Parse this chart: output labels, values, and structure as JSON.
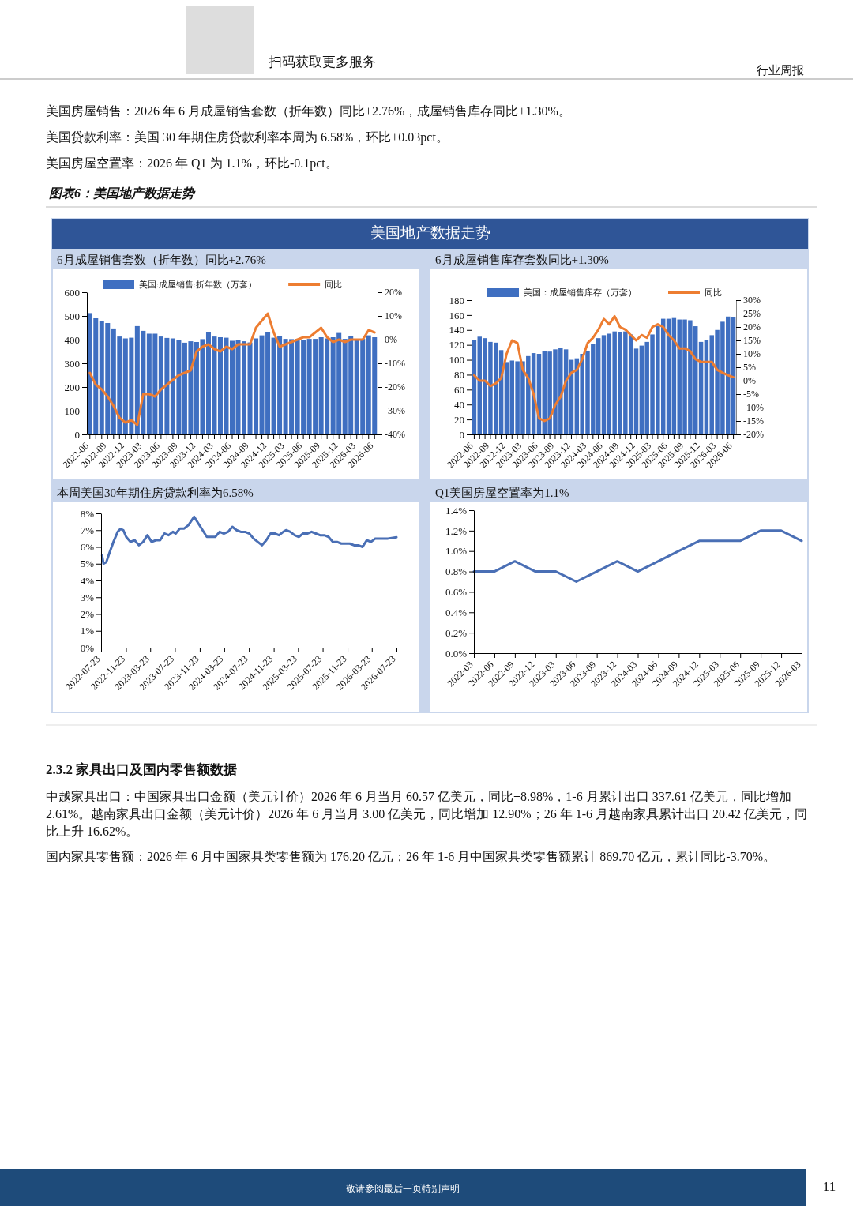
{
  "chart_data": [
    {
      "type": "bar",
      "title": "6月成屋销售套数（折年数）同比+2.76%",
      "annotations": [
        "行业周报",
        "扫码获取更多服务",
        "美国房屋销售：2026 年 6 月成屋销售套数（折年数）同比+2.76%，成屋销售库存同比+1.30%。",
        "美国贷款利率：美国 30 年期住房贷款利率本周为 6.58%，环比+0.03pct。",
        "美国房屋空置率：2026 年 Q1 为 1.1%，环比-0.1pct。",
        "图表6：美国地产数据走势",
        "美国地产数据走势",
        "2.3.2 家具出口及国内零售额数据",
        "中越家具出口：中国家具出口金额（美元计价）2026 年 6 月当月 60.57 亿美元，同比+8.98%，1-6 月累计出口 337.61 亿美元，同比增加 2.61%。越南家具出口金额（美元计价）2026 年 6 月当月 3.00 亿美元，同比增加 12.90%；26 年 1-6 月越南家具累计出口 20.42 亿美元，同比上升 16.62%。",
        "国内家具零售额：2026 年 6 月中国家具类零售额为 176.20 亿元；26 年 1-6 月中国家具类零售额累计 869.70 亿元，累计同比-3.70%。",
        "敬请参阅最后一页特别声明",
        "11"
      ],
      "categories": [
        "2022-06",
        null,
        null,
        "2022-09",
        null,
        null,
        "2022-12",
        null,
        null,
        "2023-03",
        null,
        null,
        "2023-06",
        null,
        null,
        "2023-09",
        null,
        null,
        "2023-12",
        null,
        null,
        "2024-03",
        null,
        null,
        "2024-06",
        null,
        null,
        "2024-09",
        null,
        null,
        "2024-12",
        null,
        null,
        "2025-03",
        null,
        null,
        "2025-06",
        null,
        null,
        "2025-09",
        null,
        null,
        "2025-12",
        null,
        null,
        "2026-03",
        null,
        null,
        "2026-06"
      ],
      "series": [
        {
          "name": "美国:成屋销售:折年数（万套）",
          "type": "bar",
          "color": "#3f6fc1",
          "values": [
            512,
            490,
            478,
            470,
            447,
            413,
            405,
            408,
            457,
            437,
            425,
            425,
            413,
            407,
            405,
            398,
            387,
            393,
            390,
            402,
            433,
            413,
            410,
            408,
            395,
            398,
            393,
            388,
            405,
            418,
            430,
            408,
            415,
            403,
            402,
            403,
            398,
            403,
            403,
            410,
            405,
            410,
            428,
            403,
            415,
            400,
            403,
            418,
            410
          ]
        },
        {
          "name": "同比",
          "type": "line",
          "axis": "y2",
          "color": "#ed7d31",
          "values": [
            -14,
            -19,
            -21,
            -24,
            -28,
            -33,
            -35,
            -34,
            -36,
            -23,
            -23,
            -24,
            -21,
            -19,
            -17,
            -15,
            -14,
            -13,
            -5,
            -3,
            -2,
            -4,
            -5,
            -3,
            -4,
            -2,
            -2,
            -2,
            5,
            8,
            11,
            3,
            -3,
            -2,
            -1,
            0,
            1,
            1,
            3,
            5,
            1,
            -1,
            0,
            -1,
            0,
            0,
            0,
            4,
            3
          ]
        }
      ],
      "ylim": [
        0,
        600
      ],
      "yticks": [
        0,
        100,
        200,
        300,
        400,
        500,
        600
      ],
      "y2lim": [
        -40,
        20
      ],
      "y2ticks": [
        {
          "value": -40,
          "label": "-40%"
        },
        {
          "value": -30,
          "label": "-30%"
        },
        {
          "value": -20,
          "label": "-20%"
        },
        {
          "value": -10,
          "label": "-10%"
        },
        {
          "value": 0,
          "label": "0%"
        },
        {
          "value": 10,
          "label": "10%"
        },
        {
          "value": 20,
          "label": "20%"
        }
      ],
      "legend": "top"
    },
    {
      "type": "bar",
      "title": "6月成屋销售库存套数同比+1.30%",
      "categories": [
        "2022-06",
        null,
        null,
        "2022-09",
        null,
        null,
        "2022-12",
        null,
        null,
        "2023-03",
        null,
        null,
        "2023-06",
        null,
        null,
        "2023-09",
        null,
        null,
        "2023-12",
        null,
        null,
        "2024-03",
        null,
        null,
        "2024-06",
        null,
        null,
        "2024-09",
        null,
        null,
        "2024-12",
        null,
        null,
        "2025-03",
        null,
        null,
        "2025-06",
        null,
        null,
        "2025-09",
        null,
        null,
        "2025-12",
        null,
        null,
        "2026-03",
        null,
        null,
        "2026-06"
      ],
      "series": [
        {
          "name": "美国：成屋销售库存（万套）",
          "type": "bar",
          "color": "#3f6fc1",
          "values": [
            126,
            131,
            129,
            124,
            123,
            113,
            97,
            99,
            98,
            98,
            105,
            109,
            108,
            112,
            111,
            114,
            116,
            114,
            100,
            102,
            108,
            112,
            121,
            129,
            133,
            135,
            138,
            137,
            138,
            134,
            115,
            119,
            124,
            134,
            145,
            155,
            155,
            156,
            154,
            154,
            153,
            145,
            124,
            127,
            133,
            140,
            151,
            158,
            157
          ]
        },
        {
          "name": "同比",
          "type": "line",
          "axis": "y2",
          "color": "#ed7d31",
          "values": [
            2,
            0,
            0,
            -2,
            -1,
            1,
            10,
            15,
            14,
            4,
            1,
            -5,
            -14,
            -15,
            -14,
            -9,
            -6,
            0,
            3,
            4,
            8,
            14,
            16,
            19,
            23,
            21,
            24,
            20,
            19,
            17,
            15,
            17,
            16,
            20,
            21,
            20,
            17,
            15,
            12,
            12,
            11,
            8,
            7,
            7,
            7,
            4,
            3,
            2,
            1.3
          ]
        }
      ],
      "ylim": [
        0,
        180
      ],
      "yticks": [
        0,
        20,
        40,
        60,
        80,
        100,
        120,
        140,
        160,
        180
      ],
      "y2lim": [
        -20,
        30
      ],
      "y2ticks": [
        {
          "value": -20,
          "label": "-20%"
        },
        {
          "value": -15,
          "label": "-15%"
        },
        {
          "value": -10,
          "label": "-10%"
        },
        {
          "value": -5,
          "label": "-5%"
        },
        {
          "value": 0,
          "label": "0%"
        },
        {
          "value": 5,
          "label": "5%"
        },
        {
          "value": 10,
          "label": "10%"
        },
        {
          "value": 15,
          "label": "15%"
        },
        {
          "value": 20,
          "label": "20%"
        },
        {
          "value": 25,
          "label": "25%"
        },
        {
          "value": 30,
          "label": "30%"
        }
      ],
      "legend": "top"
    },
    {
      "type": "line",
      "title": "本周美国30年期住房贷款利率为6.58%",
      "color": "#4a6fb5",
      "x": [
        "2022-07-28",
        "2022-08-04",
        "2022-08-18",
        "2022-09-01",
        "2022-09-22",
        "2022-10-13",
        "2022-10-27",
        "2022-11-10",
        "2022-11-24",
        "2022-12-15",
        "2023-01-05",
        "2023-01-26",
        "2023-02-16",
        "2023-03-09",
        "2023-03-30",
        "2023-04-20",
        "2023-05-11",
        "2023-06-01",
        "2023-06-22",
        "2023-07-13",
        "2023-07-27",
        "2023-08-17",
        "2023-09-07",
        "2023-09-28",
        "2023-10-26",
        "2023-11-16",
        "2023-12-07",
        "2023-12-28",
        "2024-01-18",
        "2024-02-08",
        "2024-02-29",
        "2024-03-21",
        "2024-04-11",
        "2024-05-02",
        "2024-05-23",
        "2024-06-13",
        "2024-07-04",
        "2024-07-25",
        "2024-08-15",
        "2024-09-05",
        "2024-09-26",
        "2024-10-17",
        "2024-11-07",
        "2024-11-28",
        "2024-12-19",
        "2025-01-09",
        "2025-01-23",
        "2025-02-13",
        "2025-03-06",
        "2025-03-27",
        "2025-04-17",
        "2025-05-08",
        "2025-05-29",
        "2025-06-19",
        "2025-07-10",
        "2025-07-31",
        "2025-08-21",
        "2025-09-11",
        "2025-10-02",
        "2025-10-23",
        "2025-11-13",
        "2025-12-04",
        "2025-12-25",
        "2026-01-15",
        "2026-02-05",
        "2026-02-26",
        "2026-03-19",
        "2026-04-09",
        "2026-04-30",
        "2026-05-21",
        "2026-06-11",
        "2026-07-23"
      ],
      "values": [
        5.5,
        5.0,
        5.1,
        5.6,
        6.3,
        6.9,
        7.08,
        7.0,
        6.6,
        6.3,
        6.4,
        6.1,
        6.3,
        6.7,
        6.3,
        6.4,
        6.4,
        6.8,
        6.7,
        6.9,
        6.8,
        7.1,
        7.1,
        7.3,
        7.8,
        7.4,
        7.0,
        6.6,
        6.6,
        6.6,
        6.9,
        6.8,
        6.9,
        7.2,
        7.0,
        6.9,
        6.9,
        6.8,
        6.5,
        6.3,
        6.1,
        6.4,
        6.8,
        6.8,
        6.7,
        6.9,
        7.0,
        6.9,
        6.7,
        6.6,
        6.8,
        6.8,
        6.9,
        6.8,
        6.7,
        6.7,
        6.6,
        6.3,
        6.3,
        6.2,
        6.2,
        6.2,
        6.1,
        6.1,
        6.0,
        6.4,
        6.3,
        6.5,
        6.5,
        6.5,
        6.5,
        6.58
      ],
      "xlim": [
        "2022-07-23",
        "2026-07-23"
      ],
      "xticks": [
        "2022-07-23",
        "2022-11-23",
        "2023-03-23",
        "2023-07-23",
        "2023-11-23",
        "2024-03-23",
        "2024-07-23",
        "2024-11-23",
        "2025-03-23",
        "2025-07-23",
        "2025-11-23",
        "2026-03-23",
        "2026-07-23"
      ],
      "ylim": [
        0,
        8
      ],
      "yticks": [
        {
          "value": 0,
          "label": "0%"
        },
        {
          "value": 1,
          "label": "1%"
        },
        {
          "value": 2,
          "label": "2%"
        },
        {
          "value": 3,
          "label": "3%"
        },
        {
          "value": 4,
          "label": "4%"
        },
        {
          "value": 5,
          "label": "5%"
        },
        {
          "value": 6,
          "label": "6%"
        },
        {
          "value": 7,
          "label": "7%"
        },
        {
          "value": 8,
          "label": "8%"
        }
      ]
    },
    {
      "type": "line",
      "title": "Q1美国房屋空置率为1.1%",
      "color": "#4a6fb5",
      "categories": [
        "2022-03",
        "2022-06",
        "2022-09",
        "2022-12",
        "2023-03",
        "2023-06",
        "2023-09",
        "2023-12",
        "2024-03",
        "2024-06",
        "2024-09",
        "2024-12",
        "2025-03",
        "2025-06",
        "2025-09",
        "2025-12",
        "2026-03"
      ],
      "values": [
        0.8,
        0.8,
        0.9,
        0.8,
        0.8,
        0.7,
        0.8,
        0.9,
        0.8,
        0.9,
        1.0,
        1.1,
        1.1,
        1.1,
        1.2,
        1.2,
        1.1
      ],
      "ylim": [
        0,
        1.4
      ],
      "yticks": [
        {
          "value": 0,
          "label": "0.0%"
        },
        {
          "value": 0.2,
          "label": "0.2%"
        },
        {
          "value": 0.4,
          "label": "0.4%"
        },
        {
          "value": 0.6,
          "label": "0.6%"
        },
        {
          "value": 0.8,
          "label": "0.8%"
        },
        {
          "value": 1.0,
          "label": "1.0%"
        },
        {
          "value": 1.2,
          "label": "1.2%"
        },
        {
          "value": 1.4,
          "label": "1.4%"
        }
      ]
    }
  ]
}
